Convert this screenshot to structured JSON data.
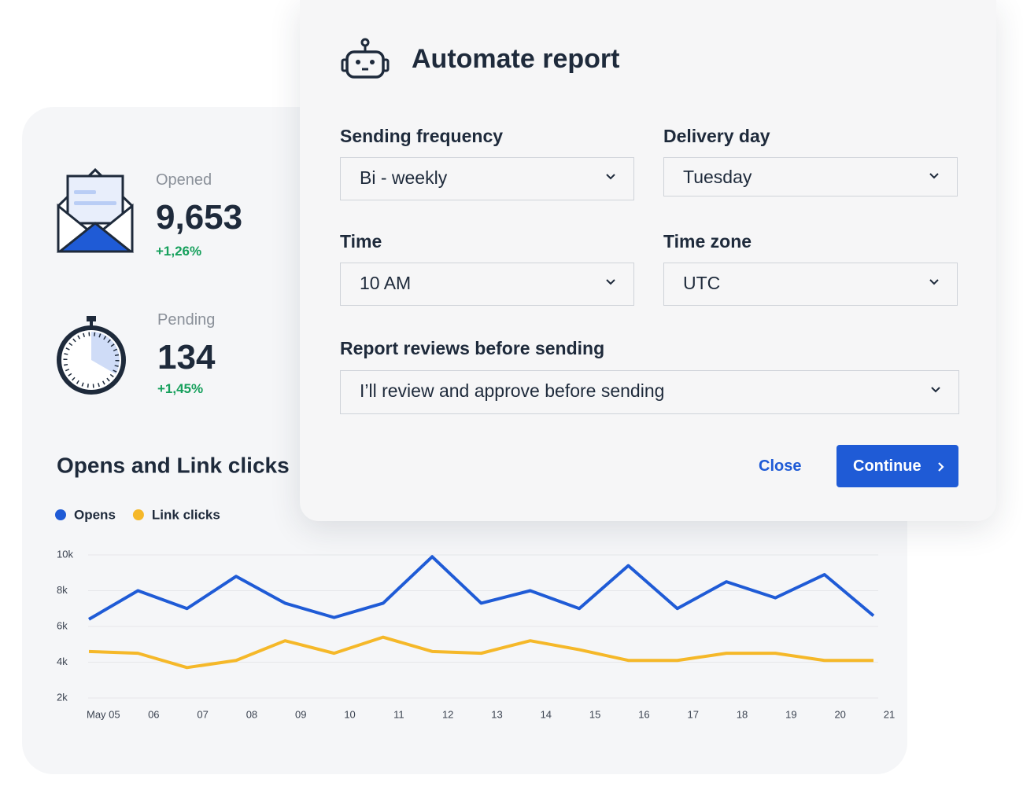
{
  "dialog": {
    "title": "Automate report",
    "fields": [
      {
        "label": "Sending frequency",
        "value": "Bi - weekly"
      },
      {
        "label": "Delivery day",
        "value": "Tuesday"
      },
      {
        "label": "Time",
        "value": "10 AM"
      },
      {
        "label": "Time zone",
        "value": "UTC"
      },
      {
        "label": "Report reviews before sending",
        "value": "I’ll review and approve before sending"
      }
    ],
    "close": "Close",
    "continue": "Continue"
  },
  "stats": [
    {
      "label": "Opened",
      "value": "9,653",
      "change": "+1,26%"
    },
    {
      "label": "Pending",
      "value": "134",
      "change": "+1,45%"
    }
  ],
  "chart_data": {
    "type": "line",
    "title": "Opens and Link clicks",
    "categories": [
      "May 05",
      "06",
      "07",
      "08",
      "09",
      "10",
      "11",
      "12",
      "13",
      "14",
      "15",
      "16",
      "17",
      "18",
      "19",
      "20",
      "21"
    ],
    "series": [
      {
        "name": "Opens",
        "color": "#1f5bd6",
        "values": [
          6400,
          8000,
          7000,
          8800,
          7300,
          6500,
          7300,
          9900,
          7300,
          8000,
          7000,
          9400,
          7000,
          8500,
          7600,
          8900,
          6600
        ]
      },
      {
        "name": "Link clicks",
        "color": "#f5b829",
        "values": [
          4600,
          4500,
          3700,
          4100,
          5200,
          4500,
          5400,
          4600,
          4500,
          5200,
          4700,
          4100,
          4100,
          4500,
          4500,
          4100,
          4100
        ]
      }
    ],
    "ylim": [
      2000,
      10000
    ],
    "yticks": [
      {
        "value": 2000,
        "label": "2k"
      },
      {
        "value": 4000,
        "label": "4k"
      },
      {
        "value": 6000,
        "label": "6k"
      },
      {
        "value": 8000,
        "label": "8k"
      },
      {
        "value": 10000,
        "label": "10k"
      }
    ],
    "grid": true
  }
}
